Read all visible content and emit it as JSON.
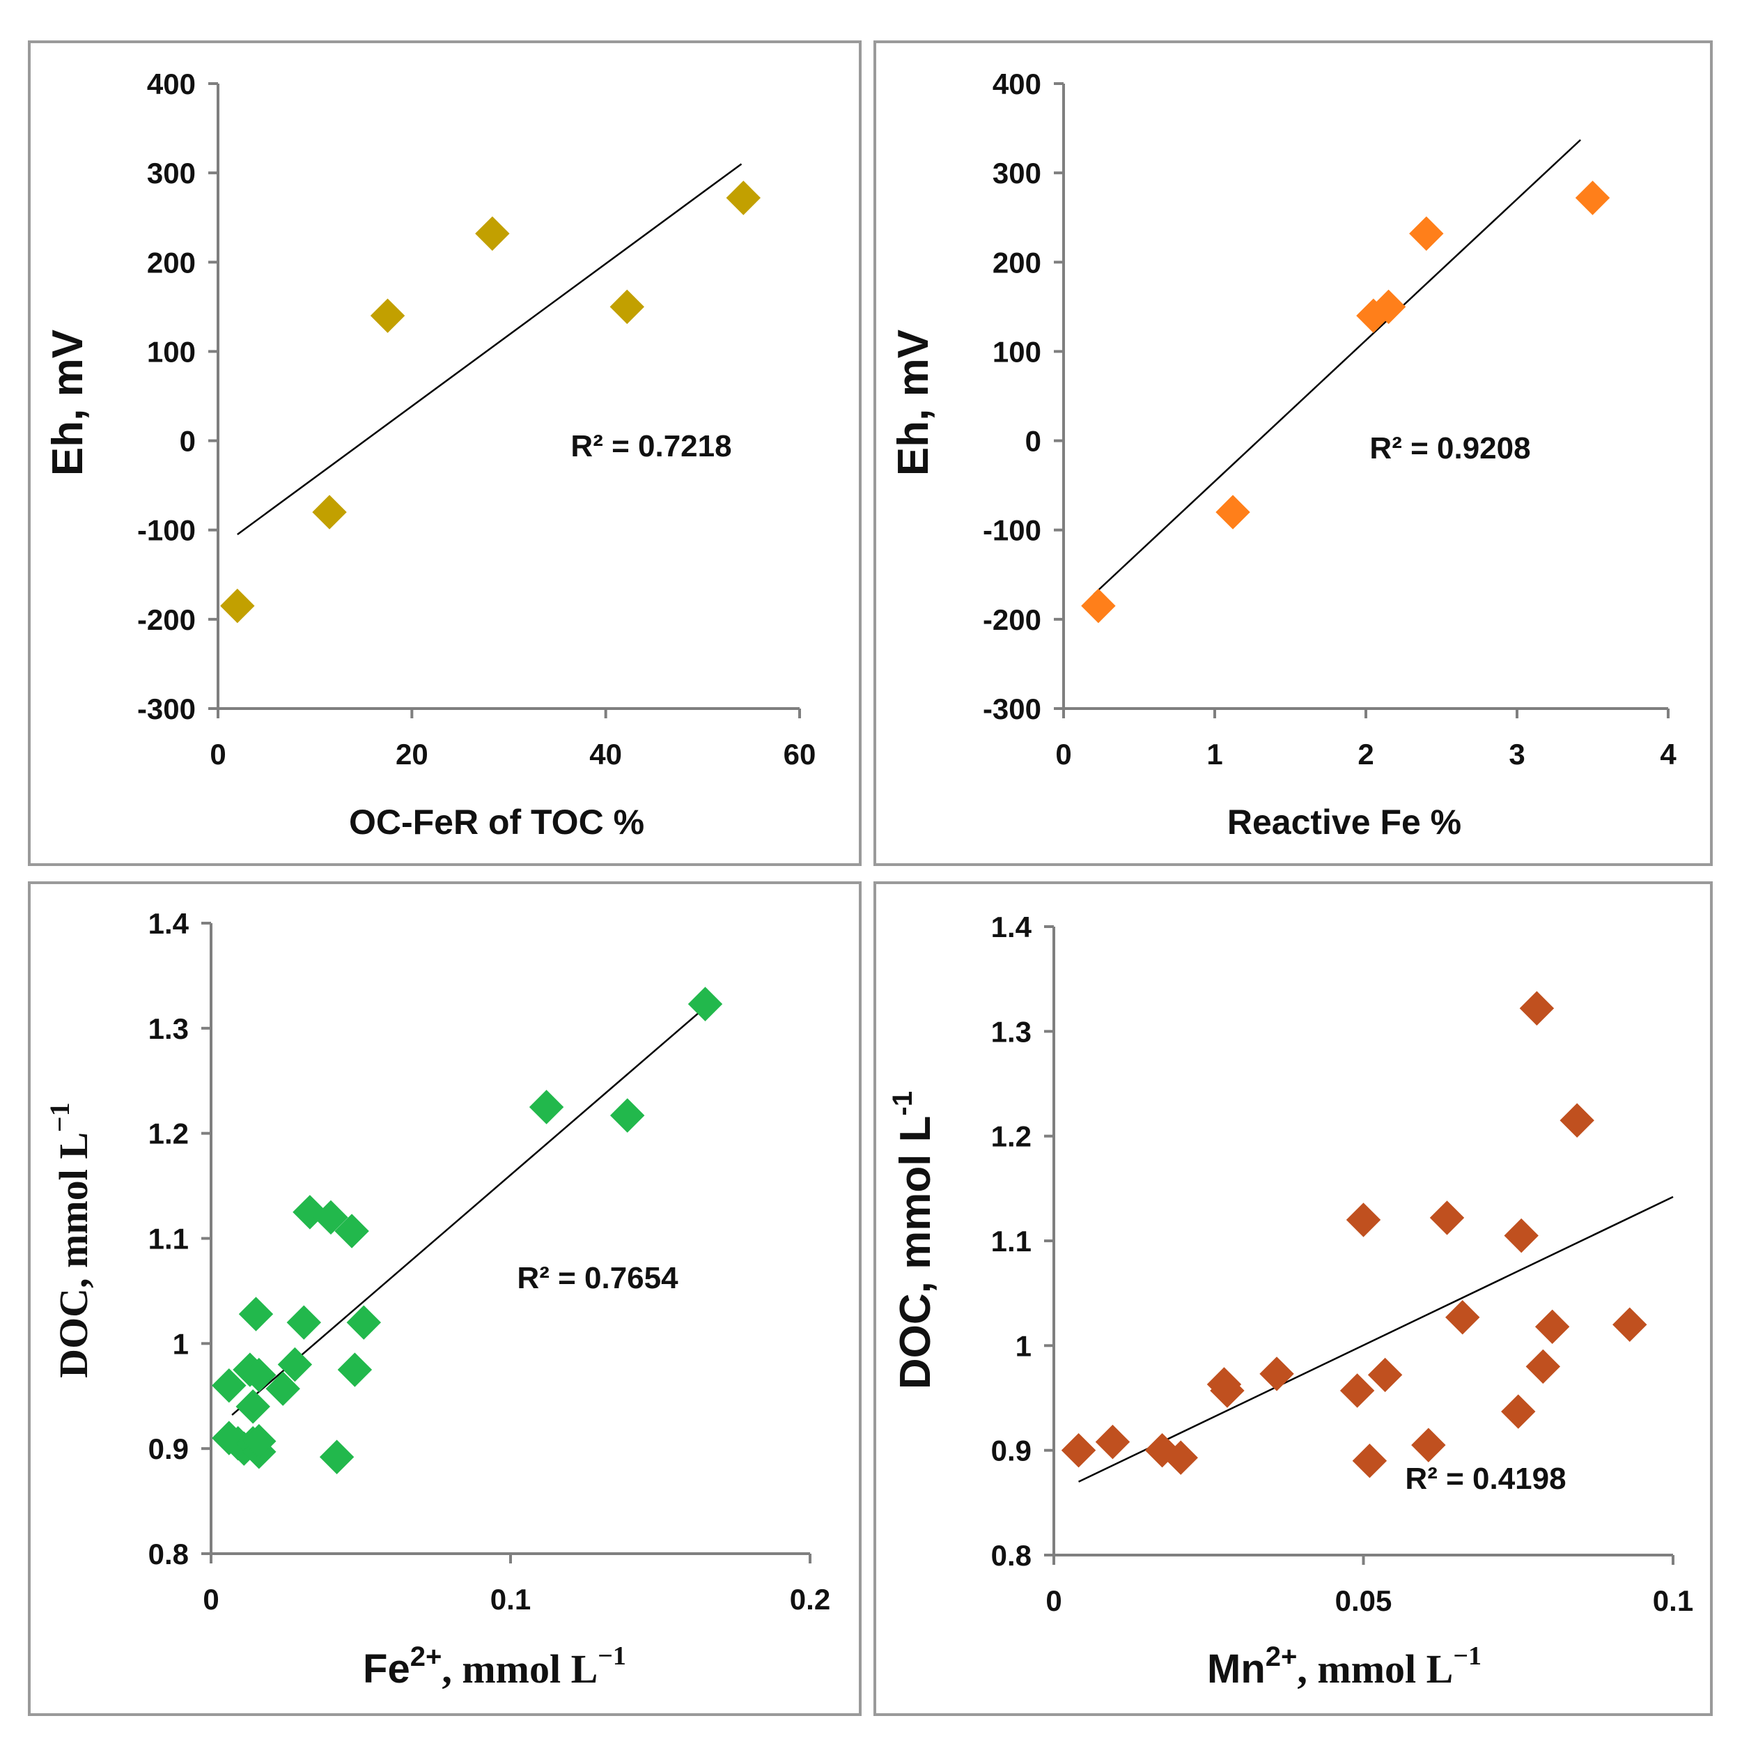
{
  "chart_data": [
    {
      "type": "scatter",
      "marker_color": "#c2a000",
      "xlabel": "OC-FeR of TOC %",
      "ylabel": "Eh, mV",
      "xlim": [
        0,
        60
      ],
      "ylim": [
        -300,
        400
      ],
      "xticks": [
        "0",
        "20",
        "40",
        "60"
      ],
      "yticks": [
        "-300",
        "-200",
        "-100",
        "0",
        "100",
        "200",
        "300",
        "400"
      ],
      "xtick_values": [
        0,
        20,
        40,
        60
      ],
      "ytick_values": [
        -300,
        -200,
        -100,
        0,
        100,
        200,
        300,
        400
      ],
      "x": [
        2,
        11.5,
        17.5,
        28.3,
        42.2,
        54.2
      ],
      "y": [
        -185,
        -80,
        140,
        232,
        150,
        272
      ],
      "trendline": {
        "x": [
          2,
          54
        ],
        "y": [
          -105,
          310
        ]
      },
      "r2_label": "R² = 0.7218"
    },
    {
      "type": "scatter",
      "marker_color": "#ff7f1a",
      "xlabel": "Reactive Fe %",
      "ylabel": "Eh, mV",
      "xlim": [
        0,
        4
      ],
      "ylim": [
        -300,
        400
      ],
      "xticks": [
        "0",
        "1",
        "2",
        "3",
        "4"
      ],
      "yticks": [
        "-300",
        "-200",
        "-100",
        "0",
        "100",
        "200",
        "300",
        "400"
      ],
      "xtick_values": [
        0,
        1,
        2,
        3,
        4
      ],
      "ytick_values": [
        -300,
        -200,
        -100,
        0,
        100,
        200,
        300,
        400
      ],
      "x": [
        0.23,
        1.12,
        2.05,
        2.15,
        2.4,
        3.5
      ],
      "y": [
        -185,
        -80,
        140,
        150,
        232,
        272
      ],
      "trendline": {
        "x": [
          0.2,
          3.42
        ],
        "y": [
          -172,
          337
        ]
      },
      "r2_label": "R² = 0.9208"
    },
    {
      "type": "scatter",
      "marker_color": "#22b84c",
      "xlabel_main": "Fe",
      "xlabel_sup": "2+",
      "xlabel_unit": ", mmol L",
      "xlabel_unit_sup": "−1",
      "ylabel_main": "DOC,  mmol L",
      "ylabel_sup": "−1",
      "xlim": [
        0,
        0.2
      ],
      "ylim": [
        0.8,
        1.4
      ],
      "xticks": [
        "0",
        "0.1",
        "0.2"
      ],
      "yticks": [
        "0.8",
        "0.9",
        "1",
        "1.1",
        "1.2",
        "1.3",
        "1.4"
      ],
      "xtick_values": [
        0,
        0.1,
        0.2
      ],
      "ytick_values": [
        0.8,
        0.9,
        1.0,
        1.1,
        1.2,
        1.3,
        1.4
      ],
      "x": [
        0.006,
        0.006,
        0.009,
        0.011,
        0.013,
        0.014,
        0.014,
        0.015,
        0.016,
        0.016,
        0.016,
        0.024,
        0.028,
        0.031,
        0.033,
        0.04,
        0.042,
        0.047,
        0.048,
        0.051,
        0.112,
        0.139,
        0.165
      ],
      "y": [
        0.96,
        0.91,
        0.905,
        0.9,
        0.975,
        0.94,
        0.905,
        1.028,
        0.897,
        0.907,
        0.97,
        0.957,
        0.98,
        1.02,
        1.125,
        1.12,
        0.892,
        1.107,
        0.975,
        1.02,
        1.225,
        1.217,
        1.323
      ],
      "trendline": {
        "x": [
          0.007,
          0.165
        ],
        "y": [
          0.932,
          1.32
        ]
      },
      "r2_label": "R² = 0.7654"
    },
    {
      "type": "scatter",
      "marker_color": "#c0501f",
      "xlabel_main": "Mn",
      "xlabel_sup": "2+",
      "xlabel_unit": ", mmol L",
      "xlabel_unit_sup": "−1",
      "ylabel_main": "DOC, mmol L",
      "ylabel_sup": "-1",
      "xlim": [
        0,
        0.1
      ],
      "ylim": [
        0.8,
        1.4
      ],
      "xticks": [
        "0",
        "0.05",
        "0.1"
      ],
      "yticks": [
        "0.8",
        "0.9",
        "1",
        "1.1",
        "1.2",
        "1.3",
        "1.4"
      ],
      "xtick_values": [
        0,
        0.05,
        0.1
      ],
      "ytick_values": [
        0.8,
        0.9,
        1.0,
        1.1,
        1.2,
        1.3,
        1.4
      ],
      "x": [
        0.004,
        0.0095,
        0.0175,
        0.0205,
        0.0275,
        0.028,
        0.036,
        0.049,
        0.05,
        0.051,
        0.0535,
        0.0605,
        0.0635,
        0.066,
        0.075,
        0.0755,
        0.078,
        0.079,
        0.0805,
        0.0845,
        0.093
      ],
      "y": [
        0.9,
        0.908,
        0.9,
        0.893,
        0.963,
        0.957,
        0.973,
        0.957,
        1.12,
        0.89,
        0.972,
        0.905,
        1.122,
        1.027,
        0.937,
        1.105,
        1.322,
        0.98,
        1.018,
        1.215,
        1.02
      ],
      "trendline": {
        "x": [
          0.004,
          0.1
        ],
        "y": [
          0.87,
          1.142
        ]
      },
      "r2_label": "R² = 0.4198"
    }
  ]
}
